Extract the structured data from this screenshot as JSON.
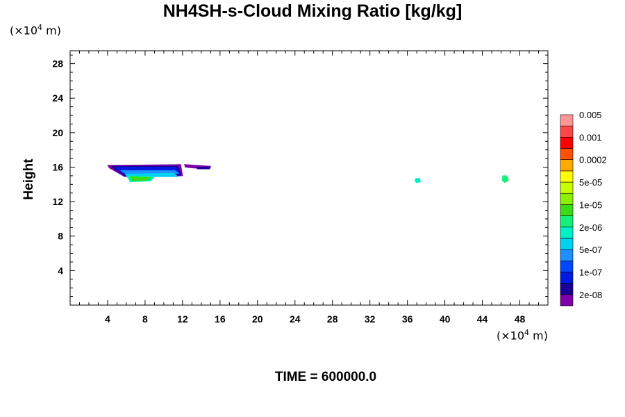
{
  "chart_data": {
    "type": "heatmap",
    "title": "NH4SH-s-Cloud Mixing Ratio [kg/kg]",
    "ylabel": "Height",
    "x_unit": "(×10",
    "x_unit_exp": "4",
    "x_unit_tail": " m)",
    "y_unit": "(×10",
    "y_unit_exp": "4",
    "y_unit_tail": " m)",
    "xlim": [
      0,
      51
    ],
    "ylim": [
      0,
      29.5
    ],
    "x_ticks": [
      4,
      8,
      12,
      16,
      20,
      24,
      28,
      32,
      36,
      40,
      44,
      48
    ],
    "x_tick_labels": [
      "4",
      "8",
      "12",
      "16",
      "20",
      "24",
      "28",
      "32",
      "36",
      "40",
      "44",
      "48"
    ],
    "y_ticks": [
      4,
      8,
      12,
      16,
      20,
      24,
      28
    ],
    "y_tick_labels": [
      "4",
      "8",
      "12",
      "16",
      "20",
      "24",
      "28"
    ],
    "grid": false,
    "colorbar": {
      "colors": [
        "#7f00a8",
        "#1a0096",
        "#0019e0",
        "#0046ff",
        "#1e90ff",
        "#00d2f0",
        "#00f0c8",
        "#14f078",
        "#3cdc14",
        "#8cf000",
        "#c8ff00",
        "#ffff00",
        "#ffaa00",
        "#ff5000",
        "#ff0000",
        "#ff4646",
        "#ff9696"
      ],
      "labels": [
        "2e-08",
        "1e-07",
        "5e-07",
        "2e-06",
        "1e-05",
        "5e-05",
        "0.0002",
        "0.001",
        "0.005"
      ]
    },
    "regions": [
      {
        "color": "#7f00a8",
        "points": [
          [
            4.0,
            16.2
          ],
          [
            11.8,
            16.3
          ],
          [
            12.0,
            15.0
          ],
          [
            8.2,
            14.9
          ],
          [
            5.8,
            14.9
          ],
          [
            4.2,
            15.9
          ]
        ]
      },
      {
        "color": "#1a0096",
        "points": [
          [
            4.4,
            16.1
          ],
          [
            11.5,
            16.1
          ],
          [
            11.8,
            15.1
          ],
          [
            8.0,
            15.0
          ],
          [
            5.8,
            15.0
          ],
          [
            4.6,
            15.9
          ]
        ]
      },
      {
        "color": "#0019e0",
        "points": [
          [
            4.8,
            16.0
          ],
          [
            11.3,
            16.0
          ],
          [
            11.7,
            15.2
          ],
          [
            8.0,
            15.1
          ],
          [
            5.9,
            15.1
          ],
          [
            5.0,
            15.8
          ]
        ]
      },
      {
        "color": "#1e90ff",
        "points": [
          [
            5.4,
            15.6
          ],
          [
            11.2,
            15.6
          ],
          [
            11.6,
            15.3
          ],
          [
            8.0,
            15.2
          ],
          [
            6.0,
            15.2
          ]
        ]
      },
      {
        "color": "#00d2f0",
        "points": [
          [
            5.9,
            15.2
          ],
          [
            11.0,
            15.3
          ],
          [
            11.5,
            14.9
          ],
          [
            8.5,
            14.9
          ],
          [
            6.2,
            14.7
          ]
        ]
      },
      {
        "color": "#00f0c8",
        "points": [
          [
            6.1,
            15.0
          ],
          [
            9.0,
            14.9
          ],
          [
            8.6,
            14.4
          ],
          [
            6.4,
            14.3
          ]
        ]
      },
      {
        "color": "#3cdc14",
        "points": [
          [
            6.4,
            14.9
          ],
          [
            8.6,
            14.8
          ],
          [
            8.3,
            14.5
          ],
          [
            6.6,
            14.4
          ]
        ]
      },
      {
        "color": "#7f00a8",
        "points": [
          [
            12.2,
            16.3
          ],
          [
            15.0,
            16.1
          ],
          [
            14.9,
            15.8
          ],
          [
            13.2,
            15.9
          ],
          [
            12.3,
            16.0
          ]
        ]
      },
      {
        "color": "#1a0096",
        "points": [
          [
            13.5,
            16.0
          ],
          [
            14.9,
            16.0
          ],
          [
            14.8,
            15.8
          ],
          [
            13.6,
            15.8
          ]
        ]
      },
      {
        "color": "#00f0c8",
        "points": [
          [
            36.9,
            14.7
          ],
          [
            37.3,
            14.7
          ],
          [
            37.4,
            14.3
          ],
          [
            37.0,
            14.2
          ],
          [
            36.8,
            14.4
          ]
        ]
      },
      {
        "color": "#14f078",
        "points": [
          [
            46.2,
            15.0
          ],
          [
            46.6,
            15.0
          ],
          [
            46.8,
            14.5
          ],
          [
            46.4,
            14.2
          ],
          [
            46.1,
            14.5
          ]
        ]
      }
    ]
  },
  "time_label": "TIME = 600000.0"
}
